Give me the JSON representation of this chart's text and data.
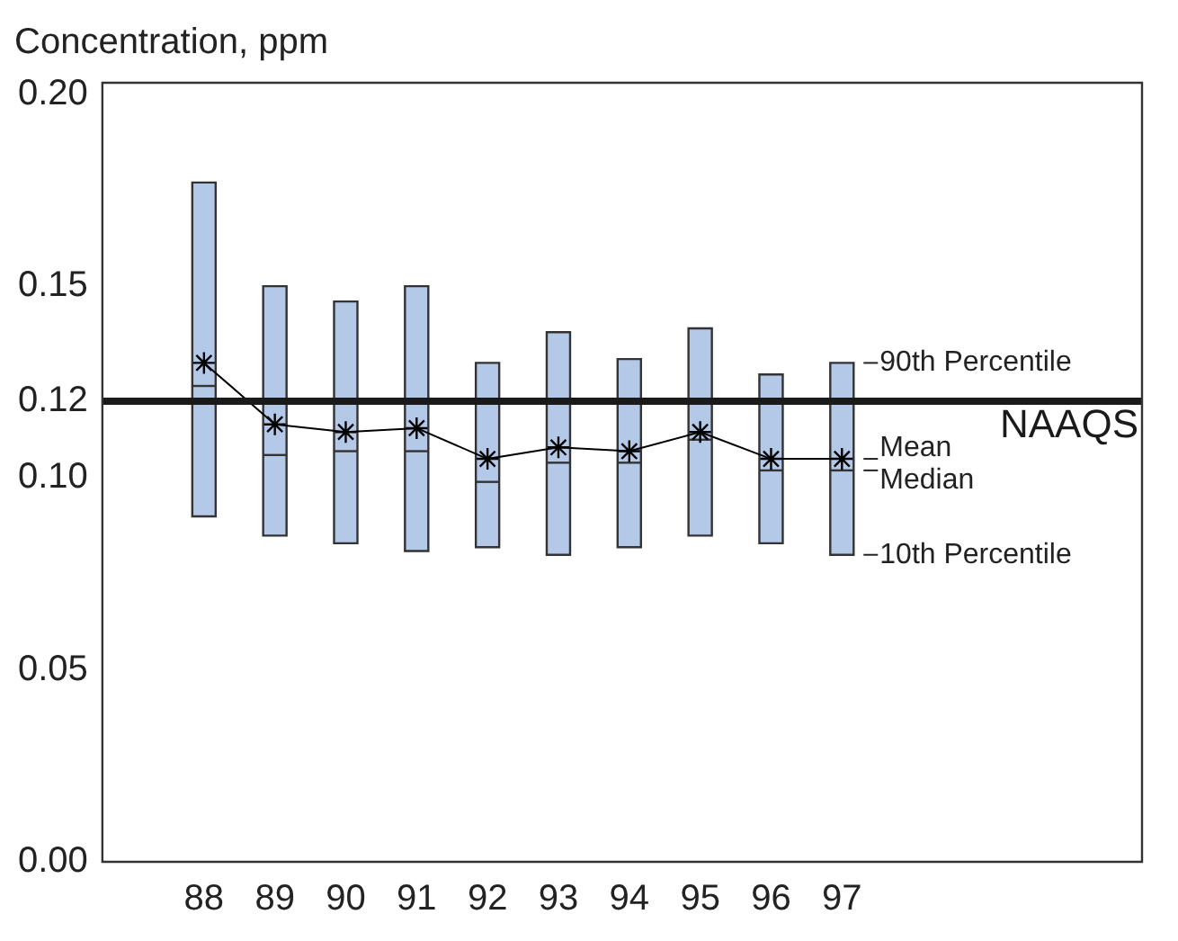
{
  "chart_data": {
    "type": "box",
    "ylabel": "Concentration, ppm",
    "categories": [
      "88",
      "89",
      "90",
      "91",
      "92",
      "93",
      "94",
      "95",
      "96",
      "97"
    ],
    "boxes": [
      {
        "low": 0.09,
        "q1": 0.09,
        "median": 0.124,
        "q3": 0.177,
        "high": 0.177
      },
      {
        "low": 0.085,
        "q1": 0.085,
        "median": 0.106,
        "q3": 0.15,
        "high": 0.15
      },
      {
        "low": 0.083,
        "q1": 0.083,
        "median": 0.107,
        "q3": 0.146,
        "high": 0.146
      },
      {
        "low": 0.081,
        "q1": 0.081,
        "median": 0.107,
        "q3": 0.15,
        "high": 0.15
      },
      {
        "low": 0.082,
        "q1": 0.082,
        "median": 0.099,
        "q3": 0.13,
        "high": 0.13
      },
      {
        "low": 0.08,
        "q1": 0.08,
        "median": 0.104,
        "q3": 0.138,
        "high": 0.138
      },
      {
        "low": 0.082,
        "q1": 0.082,
        "median": 0.104,
        "q3": 0.131,
        "high": 0.131
      },
      {
        "low": 0.085,
        "q1": 0.085,
        "median": 0.11,
        "q3": 0.139,
        "high": 0.139
      },
      {
        "low": 0.083,
        "q1": 0.083,
        "median": 0.102,
        "q3": 0.127,
        "high": 0.127
      },
      {
        "low": 0.08,
        "q1": 0.08,
        "median": 0.102,
        "q3": 0.13,
        "high": 0.13
      }
    ],
    "color": "#b4c8e8",
    "series": [
      {
        "type": "line",
        "color": "#000000",
        "marker": "cross",
        "values": [
          0.13,
          0.114,
          0.112,
          0.113,
          0.105,
          0.108,
          0.107,
          0.112,
          0.105,
          0.105
        ]
      }
    ],
    "ylim": [
      0,
      0.203
    ],
    "yticks": [
      {
        "value": 0,
        "label": "0.00"
      },
      0.05,
      {
        "value": 0.1,
        "label": "0.10"
      },
      0.12,
      0.15,
      {
        "value": 0.2,
        "label": "0.20"
      }
    ],
    "ref_lines": [
      {
        "axis": "y",
        "value": 0.12,
        "label": "NAAQS",
        "color": "#1a1a1a"
      }
    ],
    "annotations": [
      {
        "text": "90th Percentile",
        "x": "97",
        "y": 0.13
      },
      {
        "text": "Mean",
        "x": "97",
        "y": 0.105
      },
      {
        "text": "Median",
        "x": "97",
        "y": 0.102
      },
      {
        "text": "10th Percentile",
        "x": "97",
        "y": 0.08
      }
    ],
    "grid": false,
    "legend": false
  }
}
